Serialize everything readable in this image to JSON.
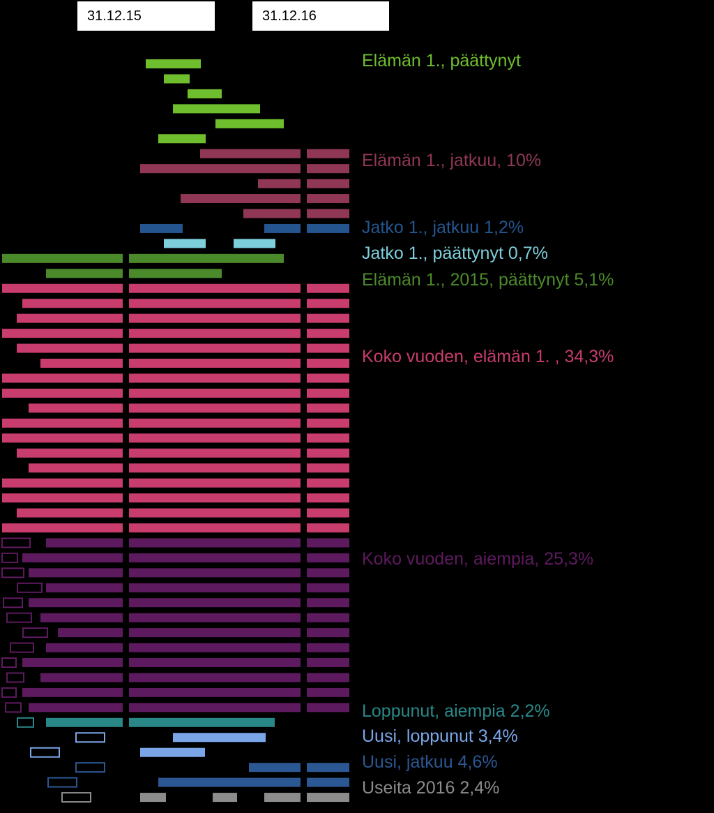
{
  "dates": {
    "start": "31.12.15",
    "end": "31.12.16"
  },
  "colors": {
    "green_light": "#6fbe2e",
    "maroon": "#8f3754",
    "blue_dark": "#24558f",
    "cyan": "#7dcfdc",
    "green_dark": "#4b8a2b",
    "pink": "#c83c6e",
    "purple": "#5e1a5e",
    "teal": "#2a8787",
    "light_blue": "#7aa6e8",
    "blue_mid": "#2b5793",
    "gray": "#8c8c8c"
  },
  "groups": [
    {
      "key": "g1",
      "label": "Elämän 1., päättynyt",
      "color": "#6fbe2e",
      "label_row": 0
    },
    {
      "key": "g2",
      "label": "Elämän 1., jatkuu,  10%",
      "color": "#8f3754",
      "label_row": 6
    },
    {
      "key": "g3",
      "label": "Jatko 1., jatkuu 1,2%",
      "color": "#24558f",
      "label_row": 11
    },
    {
      "key": "g4",
      "label": "Jatko 1., päättynyt 0,7%",
      "color": "#7dcfdc",
      "label_row": 12
    },
    {
      "key": "g5",
      "label": "Elämän 1., 2015,  päättynyt  5,1%",
      "color": "#4b8a2b",
      "label_row": 14
    },
    {
      "key": "g6",
      "label": "Koko vuoden, elämän 1. , 34,3%",
      "color": "#c83c6e",
      "label_row": 19
    },
    {
      "key": "g7",
      "label": "Koko vuoden, aiempia, 25,3%",
      "color": "#5e1a5e",
      "label_row": 33
    },
    {
      "key": "g8",
      "label": "Loppunut,  aiempia 2,2%",
      "color": "#2a8787",
      "label_row": 45
    },
    {
      "key": "g9",
      "label": "Uusi, loppunut  3,4%",
      "color": "#7aa6e8",
      "label_row": 47
    },
    {
      "key": "g10",
      "label": "Uusi, jatkuu 4,6%",
      "color": "#2b5793",
      "label_row": 49
    },
    {
      "key": "g11",
      "label": "Useita 2016 2,4%",
      "color": "#8c8c8c",
      "label_row": 50
    }
  ]
}
